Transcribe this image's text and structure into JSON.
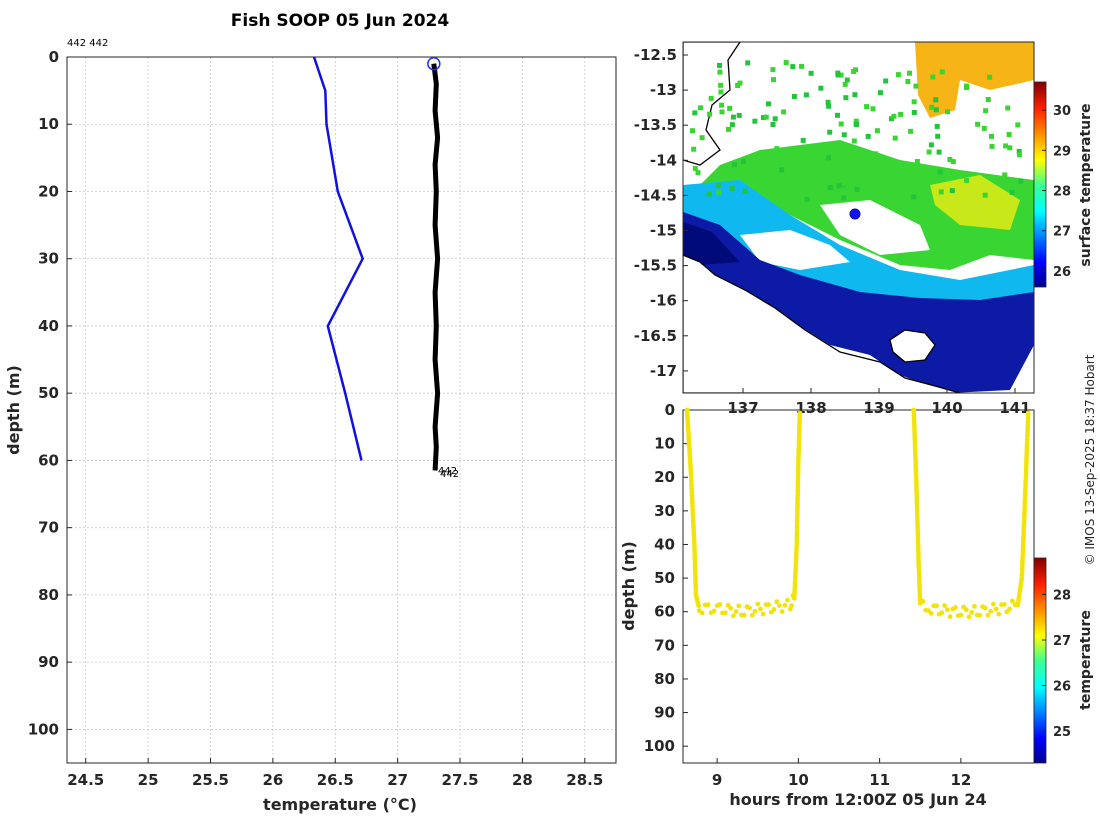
{
  "title": "Fish SOOP 05 Jun 2024",
  "credit": "© IMOS 13-Sep-2025 18:37 Hobart",
  "profile_ids": "442 442",
  "profile_end_labels": [
    "442",
    "442"
  ],
  "colors": {
    "climatology": "#1010e0",
    "profile": "#000000",
    "marker": "#2030ff",
    "timeseries": "#f2e40a"
  },
  "chart_data": [
    {
      "type": "line",
      "name": "profile",
      "xlabel": "temperature (°C)",
      "ylabel": "depth (m)",
      "xlim": [
        24.35,
        28.75
      ],
      "ylim": [
        0,
        105
      ],
      "y_reversed": true,
      "xticks": [
        "24.5",
        "25",
        "25.5",
        "26",
        "26.5",
        "27",
        "27.5",
        "28",
        "28.5"
      ],
      "yticks": [
        "0",
        "10",
        "20",
        "30",
        "40",
        "50",
        "60",
        "70",
        "80",
        "90",
        "100"
      ],
      "grid": true,
      "series": [
        {
          "name": "climatology",
          "color": "#1010e0",
          "points": [
            [
              26.33,
              0
            ],
            [
              26.42,
              5
            ],
            [
              26.43,
              10
            ],
            [
              26.52,
              20
            ],
            [
              26.72,
              30
            ],
            [
              26.44,
              40
            ],
            [
              26.58,
              50
            ],
            [
              26.71,
              60
            ]
          ]
        },
        {
          "name": "profile",
          "color": "#000000",
          "points": [
            [
              27.29,
              1
            ],
            [
              27.31,
              4
            ],
            [
              27.3,
              8
            ],
            [
              27.32,
              12
            ],
            [
              27.3,
              16
            ],
            [
              27.31,
              20
            ],
            [
              27.3,
              25
            ],
            [
              27.32,
              30
            ],
            [
              27.3,
              35
            ],
            [
              27.31,
              40
            ],
            [
              27.3,
              45
            ],
            [
              27.32,
              50
            ],
            [
              27.3,
              55
            ],
            [
              27.31,
              58
            ],
            [
              27.3,
              61.5
            ]
          ]
        }
      ],
      "marker": {
        "x": 27.29,
        "y": 1
      }
    },
    {
      "type": "heatmap",
      "name": "surface-temperature-map",
      "colorbar_label": "surface temperature",
      "yticks": [
        "-12.5",
        "-13",
        "-13.5",
        "-14",
        "-14.5",
        "-15",
        "-15.5",
        "-16",
        "-16.5",
        "-17"
      ],
      "xticks": [
        "137",
        "138",
        "139",
        "140",
        "141"
      ],
      "colorbar_ticks": [
        "26",
        "27",
        "28",
        "29",
        "30"
      ],
      "colorbar_range": [
        25.6,
        30.7
      ],
      "vessel_position": {
        "lon": 138.7,
        "lat": -14.8
      }
    },
    {
      "type": "scatter",
      "name": "depth-timeseries",
      "xlabel": "hours from 12:00Z 05 Jun 24",
      "ylabel": "depth (m)",
      "colorbar_label": "temperature",
      "xlim": [
        8.58,
        12.9
      ],
      "ylim": [
        0,
        105
      ],
      "y_reversed": true,
      "xticks": [
        "9",
        "10",
        "11",
        "12"
      ],
      "yticks": [
        "0",
        "10",
        "20",
        "30",
        "40",
        "50",
        "60",
        "70",
        "80",
        "90",
        "100"
      ],
      "colorbar_ticks": [
        "25",
        "26",
        "27",
        "28"
      ],
      "colorbar_range": [
        24.3,
        28.8
      ],
      "segments": [
        [
          [
            8.63,
            0
          ],
          [
            8.68,
            20
          ],
          [
            8.72,
            40
          ],
          [
            8.74,
            55
          ],
          [
            8.78,
            59
          ],
          [
            9.0,
            59
          ],
          [
            9.3,
            60
          ],
          [
            9.6,
            59
          ],
          [
            9.9,
            58
          ],
          [
            9.95,
            56
          ],
          [
            9.98,
            40
          ],
          [
            10.0,
            15
          ],
          [
            10.02,
            0
          ]
        ],
        [
          [
            11.42,
            0
          ],
          [
            11.45,
            20
          ],
          [
            11.48,
            45
          ],
          [
            11.5,
            58
          ],
          [
            11.6,
            59
          ],
          [
            11.9,
            60
          ],
          [
            12.2,
            60
          ],
          [
            12.5,
            59
          ],
          [
            12.7,
            58
          ],
          [
            12.75,
            50
          ],
          [
            12.8,
            20
          ],
          [
            12.83,
            0
          ]
        ]
      ]
    }
  ]
}
